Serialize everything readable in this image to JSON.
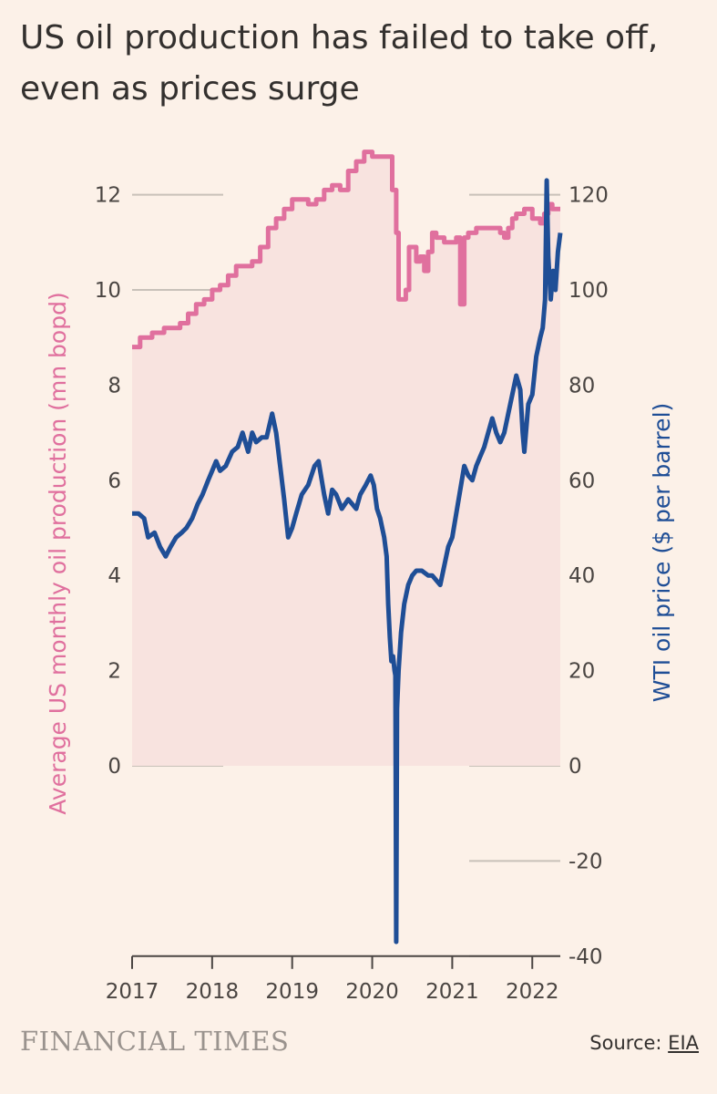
{
  "title": "US oil production has failed to take off, even as prices surge",
  "branding": "FINANCIAL TIMES",
  "source": {
    "prefix": "Source: ",
    "link": "EIA"
  },
  "chart_data": {
    "type": "line",
    "colors": {
      "production": "#e0709e",
      "production_fill": "#f8e3df",
      "price": "#1f4e96",
      "grid": "#c8c1b9",
      "axis": "#4a4542",
      "background": "#fcf1e8"
    },
    "xlabel": "",
    "x_ticks": [
      "2017",
      "2018",
      "2019",
      "2020",
      "2021",
      "2022"
    ],
    "xlim": [
      2017.0,
      2022.35
    ],
    "y_left": {
      "label": "Average US monthly oil production (mn bopd)",
      "ticks": [
        "0",
        "2",
        "4",
        "6",
        "8",
        "10",
        "12"
      ],
      "ylim": [
        -4,
        12.6
      ]
    },
    "y_right": {
      "label": "WTI oil price ($ per barrel)",
      "ticks": [
        "-40",
        "-20",
        "0",
        "20",
        "40",
        "60",
        "80",
        "100",
        "120"
      ],
      "ylim": [
        -40,
        126
      ]
    },
    "series": [
      {
        "axis": "left",
        "points": [
          [
            2017.0,
            8.8
          ],
          [
            2017.1,
            9.0
          ],
          [
            2017.25,
            9.1
          ],
          [
            2017.4,
            9.2
          ],
          [
            2017.5,
            9.2
          ],
          [
            2017.6,
            9.3
          ],
          [
            2017.7,
            9.5
          ],
          [
            2017.8,
            9.7
          ],
          [
            2017.9,
            9.8
          ],
          [
            2018.0,
            10.0
          ],
          [
            2018.1,
            10.1
          ],
          [
            2018.2,
            10.3
          ],
          [
            2018.3,
            10.5
          ],
          [
            2018.4,
            10.5
          ],
          [
            2018.5,
            10.6
          ],
          [
            2018.6,
            10.9
          ],
          [
            2018.7,
            11.3
          ],
          [
            2018.8,
            11.5
          ],
          [
            2018.9,
            11.7
          ],
          [
            2019.0,
            11.9
          ],
          [
            2019.1,
            11.9
          ],
          [
            2019.2,
            11.8
          ],
          [
            2019.3,
            11.9
          ],
          [
            2019.4,
            12.1
          ],
          [
            2019.5,
            12.2
          ],
          [
            2019.6,
            12.1
          ],
          [
            2019.7,
            12.5
          ],
          [
            2019.8,
            12.7
          ],
          [
            2019.9,
            12.9
          ],
          [
            2020.0,
            12.8
          ],
          [
            2020.1,
            12.8
          ],
          [
            2020.2,
            12.8
          ],
          [
            2020.25,
            12.1
          ],
          [
            2020.3,
            11.2
          ],
          [
            2020.33,
            9.8
          ],
          [
            2020.37,
            9.8
          ],
          [
            2020.42,
            10.0
          ],
          [
            2020.46,
            10.9
          ],
          [
            2020.5,
            10.9
          ],
          [
            2020.55,
            10.6
          ],
          [
            2020.6,
            10.7
          ],
          [
            2020.65,
            10.4
          ],
          [
            2020.7,
            10.8
          ],
          [
            2020.75,
            11.2
          ],
          [
            2020.8,
            11.1
          ],
          [
            2020.85,
            11.1
          ],
          [
            2020.9,
            11.0
          ],
          [
            2020.95,
            11.0
          ],
          [
            2021.0,
            11.0
          ],
          [
            2021.05,
            11.1
          ],
          [
            2021.1,
            9.7
          ],
          [
            2021.15,
            11.1
          ],
          [
            2021.2,
            11.2
          ],
          [
            2021.3,
            11.3
          ],
          [
            2021.4,
            11.3
          ],
          [
            2021.5,
            11.3
          ],
          [
            2021.6,
            11.2
          ],
          [
            2021.65,
            11.1
          ],
          [
            2021.7,
            11.3
          ],
          [
            2021.75,
            11.5
          ],
          [
            2021.8,
            11.6
          ],
          [
            2021.9,
            11.7
          ],
          [
            2022.0,
            11.5
          ],
          [
            2022.1,
            11.4
          ],
          [
            2022.15,
            11.6
          ],
          [
            2022.2,
            11.8
          ],
          [
            2022.25,
            11.7
          ],
          [
            2022.3,
            11.7
          ],
          [
            2022.35,
            11.7
          ]
        ]
      },
      {
        "axis": "right",
        "points": [
          [
            2017.0,
            53
          ],
          [
            2017.08,
            53
          ],
          [
            2017.15,
            52
          ],
          [
            2017.2,
            48
          ],
          [
            2017.28,
            49
          ],
          [
            2017.35,
            46
          ],
          [
            2017.42,
            44
          ],
          [
            2017.48,
            46
          ],
          [
            2017.55,
            48
          ],
          [
            2017.62,
            49
          ],
          [
            2017.68,
            50
          ],
          [
            2017.75,
            52
          ],
          [
            2017.82,
            55
          ],
          [
            2017.88,
            57
          ],
          [
            2017.95,
            60
          ],
          [
            2018.0,
            62
          ],
          [
            2018.05,
            64
          ],
          [
            2018.1,
            62
          ],
          [
            2018.17,
            63
          ],
          [
            2018.25,
            66
          ],
          [
            2018.32,
            67
          ],
          [
            2018.38,
            70
          ],
          [
            2018.45,
            66
          ],
          [
            2018.5,
            70
          ],
          [
            2018.55,
            68
          ],
          [
            2018.62,
            69
          ],
          [
            2018.68,
            69
          ],
          [
            2018.75,
            74
          ],
          [
            2018.8,
            70
          ],
          [
            2018.85,
            63
          ],
          [
            2018.9,
            56
          ],
          [
            2018.95,
            48
          ],
          [
            2019.0,
            50
          ],
          [
            2019.05,
            53
          ],
          [
            2019.12,
            57
          ],
          [
            2019.2,
            59
          ],
          [
            2019.28,
            63
          ],
          [
            2019.33,
            64
          ],
          [
            2019.4,
            57
          ],
          [
            2019.45,
            53
          ],
          [
            2019.5,
            58
          ],
          [
            2019.55,
            57
          ],
          [
            2019.62,
            54
          ],
          [
            2019.7,
            56
          ],
          [
            2019.75,
            55
          ],
          [
            2019.8,
            54
          ],
          [
            2019.85,
            57
          ],
          [
            2019.92,
            59
          ],
          [
            2019.98,
            61
          ],
          [
            2020.02,
            59
          ],
          [
            2020.06,
            54
          ],
          [
            2020.1,
            52
          ],
          [
            2020.15,
            48
          ],
          [
            2020.18,
            44
          ],
          [
            2020.2,
            34
          ],
          [
            2020.22,
            27
          ],
          [
            2020.24,
            22
          ],
          [
            2020.26,
            23
          ],
          [
            2020.28,
            20
          ],
          [
            2020.29,
            19
          ],
          [
            2020.3,
            -37
          ],
          [
            2020.31,
            12
          ],
          [
            2020.33,
            20
          ],
          [
            2020.36,
            28
          ],
          [
            2020.4,
            34
          ],
          [
            2020.45,
            38
          ],
          [
            2020.5,
            40
          ],
          [
            2020.55,
            41
          ],
          [
            2020.62,
            41
          ],
          [
            2020.7,
            40
          ],
          [
            2020.75,
            40
          ],
          [
            2020.8,
            39
          ],
          [
            2020.85,
            38
          ],
          [
            2020.9,
            42
          ],
          [
            2020.95,
            46
          ],
          [
            2021.0,
            48
          ],
          [
            2021.05,
            53
          ],
          [
            2021.1,
            58
          ],
          [
            2021.15,
            63
          ],
          [
            2021.2,
            61
          ],
          [
            2021.25,
            60
          ],
          [
            2021.3,
            63
          ],
          [
            2021.35,
            65
          ],
          [
            2021.4,
            67
          ],
          [
            2021.45,
            70
          ],
          [
            2021.5,
            73
          ],
          [
            2021.55,
            70
          ],
          [
            2021.6,
            68
          ],
          [
            2021.65,
            70
          ],
          [
            2021.7,
            74
          ],
          [
            2021.75,
            78
          ],
          [
            2021.8,
            82
          ],
          [
            2021.85,
            79
          ],
          [
            2021.88,
            70
          ],
          [
            2021.9,
            66
          ],
          [
            2021.95,
            76
          ],
          [
            2022.0,
            78
          ],
          [
            2022.05,
            86
          ],
          [
            2022.1,
            90
          ],
          [
            2022.13,
            92
          ],
          [
            2022.16,
            98
          ],
          [
            2022.18,
            123
          ],
          [
            2022.2,
            107
          ],
          [
            2022.23,
            98
          ],
          [
            2022.26,
            104
          ],
          [
            2022.29,
            100
          ],
          [
            2022.32,
            108
          ],
          [
            2022.35,
            112
          ]
        ]
      }
    ]
  }
}
